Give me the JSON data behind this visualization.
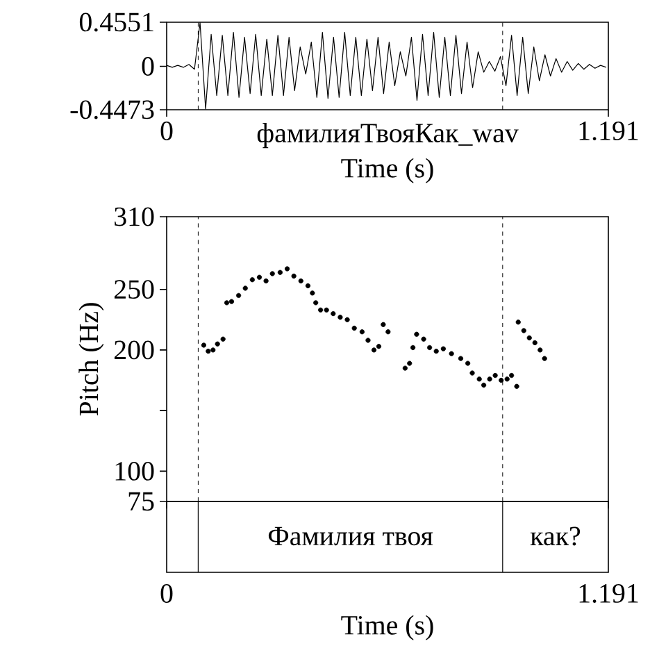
{
  "chart_data": [
    {
      "type": "line",
      "xlabel": "Time (s)",
      "annotations": [
        "фамилияТвояКак_wav"
      ],
      "xlim": [
        0,
        1.191
      ],
      "xticks": [
        0,
        1.191
      ],
      "ylim": [
        -0.4473,
        0.4551
      ],
      "yticks": [
        -0.4473,
        0,
        0.4551
      ],
      "ref_lines": [
        {
          "axis": "x",
          "value": 0.085,
          "line_style": "dashed"
        },
        {
          "axis": "x",
          "value": 0.906,
          "line_style": "dashed"
        }
      ],
      "series": [
        {
          "color": "#000000",
          "x": [
            0,
            0.015,
            0.03,
            0.045,
            0.06,
            0.075,
            0.09,
            0.105,
            0.12,
            0.135,
            0.15,
            0.165,
            0.18,
            0.195,
            0.21,
            0.225,
            0.24,
            0.255,
            0.27,
            0.285,
            0.3,
            0.315,
            0.33,
            0.345,
            0.36,
            0.375,
            0.39,
            0.405,
            0.42,
            0.435,
            0.45,
            0.465,
            0.48,
            0.495,
            0.51,
            0.525,
            0.54,
            0.555,
            0.57,
            0.585,
            0.6,
            0.615,
            0.63,
            0.645,
            0.66,
            0.675,
            0.69,
            0.705,
            0.72,
            0.735,
            0.75,
            0.765,
            0.78,
            0.795,
            0.81,
            0.825,
            0.84,
            0.855,
            0.87,
            0.885,
            0.9,
            0.915,
            0.93,
            0.945,
            0.96,
            0.975,
            0.99,
            1.005,
            1.02,
            1.035,
            1.05,
            1.065,
            1.08,
            1.095,
            1.11,
            1.125,
            1.14,
            1.155,
            1.17,
            1.185
          ],
          "values": [
            0.01,
            -0.01,
            0.01,
            -0.01,
            0.02,
            -0.03,
            0.45,
            -0.44,
            0.33,
            -0.3,
            0.32,
            -0.3,
            0.35,
            -0.32,
            0.3,
            -0.28,
            0.33,
            -0.3,
            0.28,
            -0.3,
            0.32,
            -0.3,
            0.3,
            -0.25,
            0.2,
            -0.08,
            0.25,
            -0.32,
            0.35,
            -0.33,
            0.3,
            -0.32,
            0.35,
            -0.3,
            0.3,
            -0.3,
            0.28,
            -0.25,
            0.3,
            -0.28,
            0.25,
            -0.2,
            0.15,
            -0.1,
            0.3,
            -0.35,
            0.33,
            -0.3,
            0.35,
            -0.32,
            0.3,
            -0.3,
            0.32,
            -0.28,
            0.25,
            -0.22,
            0.15,
            -0.06,
            0.05,
            -0.05,
            0.1,
            -0.2,
            0.32,
            -0.3,
            0.3,
            -0.28,
            0.2,
            -0.15,
            0.12,
            -0.1,
            0.08,
            -0.06,
            0.05,
            -0.04,
            0.03,
            -0.03,
            0.02,
            -0.02,
            0.01,
            -0.01
          ]
        }
      ]
    },
    {
      "type": "scatter",
      "xlabel": "Time (s)",
      "ylabel": "Pitch (Hz)",
      "marker": "circle",
      "annotations": [
        "Фамилия твоя",
        "как?"
      ],
      "xlim": [
        0,
        1.191
      ],
      "xticks": [
        0,
        1.191
      ],
      "ylim": [
        75,
        310
      ],
      "yticks": [
        75,
        100,
        {
          "value": 150,
          "label": null
        },
        200,
        250,
        310
      ],
      "ref_lines": [
        {
          "axis": "x",
          "value": 0.085,
          "line_style": "dashed"
        },
        {
          "axis": "x",
          "value": 0.906,
          "line_style": "dashed"
        }
      ],
      "series": [
        {
          "color": "#000000",
          "x": [
            0.1,
            0.112,
            0.125,
            0.137,
            0.152,
            0.162,
            0.175,
            0.194,
            0.212,
            0.231,
            0.25,
            0.268,
            0.285,
            0.306,
            0.325,
            0.343,
            0.362,
            0.381,
            0.393,
            0.402,
            0.415,
            0.431,
            0.449,
            0.468,
            0.487,
            0.506,
            0.527,
            0.543,
            0.559,
            0.572,
            0.584,
            0.597,
            0.643,
            0.655,
            0.664,
            0.674,
            0.693,
            0.709,
            0.727,
            0.746,
            0.768,
            0.793,
            0.812,
            0.824,
            0.843,
            0.855,
            0.871,
            0.886,
            0.902,
            0.918,
            0.93,
            0.944,
            0.948,
            0.963,
            0.978,
            0.993,
            1.007,
            1.019
          ],
          "values": [
            204,
            199,
            200,
            205,
            209,
            239,
            240,
            245,
            251,
            258,
            260,
            257,
            263,
            264,
            267,
            261,
            257,
            253,
            247,
            239,
            233,
            233,
            230,
            227,
            225,
            218,
            215,
            208,
            200,
            203,
            221,
            215,
            185,
            189,
            202,
            213,
            209,
            202,
            199,
            201,
            197,
            193,
            189,
            181,
            176,
            171,
            176,
            179,
            175,
            176,
            179,
            170,
            223,
            216,
            210,
            206,
            200,
            193
          ]
        }
      ]
    }
  ]
}
